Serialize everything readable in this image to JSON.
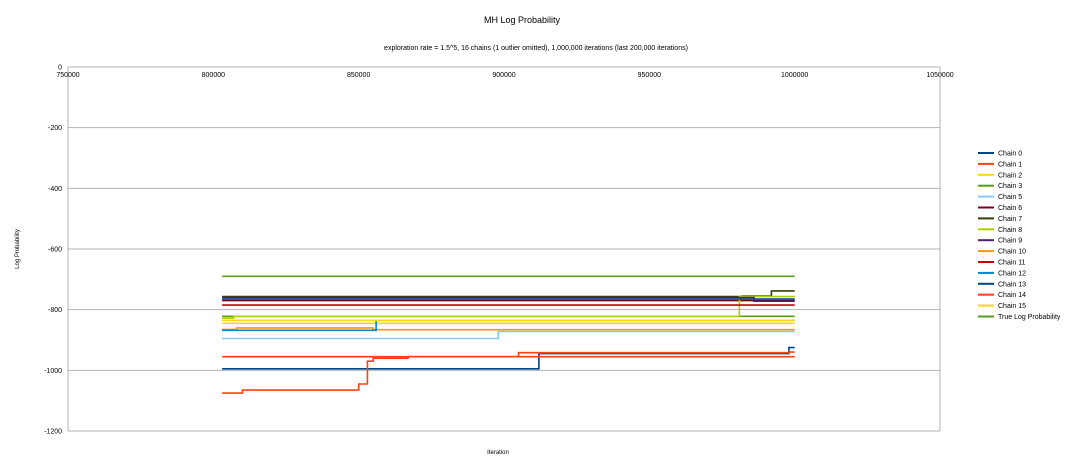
{
  "chart_data": {
    "type": "line",
    "title": "MH Log Probability",
    "subtitle": "exploration rate = 1.5^5, 16 chains (1 outlier omitted), 1,000,000 iterations (last 200,000 iterations)",
    "xlabel": "Iteration",
    "ylabel": "Log Probability",
    "xlim": [
      750000,
      1050000
    ],
    "ylim": [
      -1200,
      0
    ],
    "x_ticks": [
      "750000",
      "800000",
      "850000",
      "900000",
      "950000",
      "1000000",
      "1050000"
    ],
    "y_ticks": [
      "0",
      "-200",
      "-400",
      "-600",
      "-800",
      "-1000",
      "-1200"
    ],
    "grid": "horizontal",
    "legend_position": "right",
    "series": [
      {
        "name": "Chain 0",
        "color": "#004586",
        "points": [
          [
            803000,
            -995
          ],
          [
            912000,
            -995
          ],
          [
            912000,
            -945
          ],
          [
            998000,
            -945
          ],
          [
            998000,
            -925
          ],
          [
            1000000,
            -925
          ]
        ]
      },
      {
        "name": "Chain 1",
        "color": "#ff420e",
        "points": [
          [
            803000,
            -1075
          ],
          [
            810000,
            -1075
          ],
          [
            810000,
            -1065
          ],
          [
            850000,
            -1065
          ],
          [
            850000,
            -1045
          ],
          [
            853000,
            -1045
          ],
          [
            853000,
            -970
          ],
          [
            855000,
            -970
          ],
          [
            855000,
            -960
          ],
          [
            867000,
            -960
          ],
          [
            867000,
            -955
          ],
          [
            905000,
            -955
          ],
          [
            905000,
            -942
          ],
          [
            998000,
            -942
          ],
          [
            998000,
            -940
          ],
          [
            1000000,
            -940
          ]
        ]
      },
      {
        "name": "Chain 2",
        "color": "#ffd320",
        "points": [
          [
            803000,
            -845
          ],
          [
            1000000,
            -845
          ]
        ]
      },
      {
        "name": "Chain 3",
        "color": "#579d1c",
        "points": [
          [
            803000,
            -822
          ],
          [
            1000000,
            -822
          ]
        ]
      },
      {
        "name": "Chain 5",
        "color": "#83caff",
        "points": [
          [
            803000,
            -895
          ],
          [
            898000,
            -895
          ],
          [
            898000,
            -872
          ],
          [
            1000000,
            -872
          ]
        ]
      },
      {
        "name": "Chain 6",
        "color": "#7e0021",
        "points": [
          [
            803000,
            -770
          ],
          [
            1000000,
            -770
          ]
        ]
      },
      {
        "name": "Chain 7",
        "color": "#314004",
        "points": [
          [
            803000,
            -757
          ],
          [
            982000,
            -757
          ],
          [
            982000,
            -755
          ],
          [
            992000,
            -755
          ],
          [
            992000,
            -738
          ],
          [
            1000000,
            -738
          ]
        ]
      },
      {
        "name": "Chain 8",
        "color": "#aecf00",
        "points": [
          [
            803000,
            -828
          ],
          [
            807000,
            -828
          ],
          [
            807000,
            -822
          ],
          [
            981000,
            -822
          ],
          [
            981000,
            -757
          ],
          [
            1000000,
            -757
          ]
        ]
      },
      {
        "name": "Chain 9",
        "color": "#4b1f6f",
        "points": [
          [
            803000,
            -760
          ],
          [
            986000,
            -760
          ],
          [
            986000,
            -772
          ],
          [
            1000000,
            -772
          ]
        ]
      },
      {
        "name": "Chain 10",
        "color": "#ff950e",
        "points": [
          [
            803000,
            -865
          ],
          [
            808000,
            -865
          ],
          [
            808000,
            -860
          ],
          [
            855000,
            -860
          ],
          [
            855000,
            -866
          ],
          [
            1000000,
            -866
          ]
        ]
      },
      {
        "name": "Chain 11",
        "color": "#c5000b",
        "points": [
          [
            803000,
            -785
          ],
          [
            1000000,
            -785
          ]
        ]
      },
      {
        "name": "Chain 12",
        "color": "#0084d1",
        "points": [
          [
            803000,
            -868
          ],
          [
            856000,
            -868
          ],
          [
            856000,
            -835
          ],
          [
            1000000,
            -835
          ]
        ]
      },
      {
        "name": "Chain 13",
        "color": "#004586",
        "points": [
          [
            803000,
            -765
          ],
          [
            1000000,
            -765
          ]
        ]
      },
      {
        "name": "Chain 14",
        "color": "#ff420e",
        "points": [
          [
            803000,
            -955
          ],
          [
            1000000,
            -955
          ]
        ]
      },
      {
        "name": "Chain 15",
        "color": "#ffd320",
        "points": [
          [
            803000,
            -835
          ],
          [
            825000,
            -835
          ],
          [
            825000,
            -835
          ],
          [
            1000000,
            -835
          ]
        ]
      },
      {
        "name": "True Log Probability",
        "color": "#579d1c",
        "points": [
          [
            803000,
            -690
          ],
          [
            1000000,
            -690
          ]
        ]
      }
    ]
  }
}
